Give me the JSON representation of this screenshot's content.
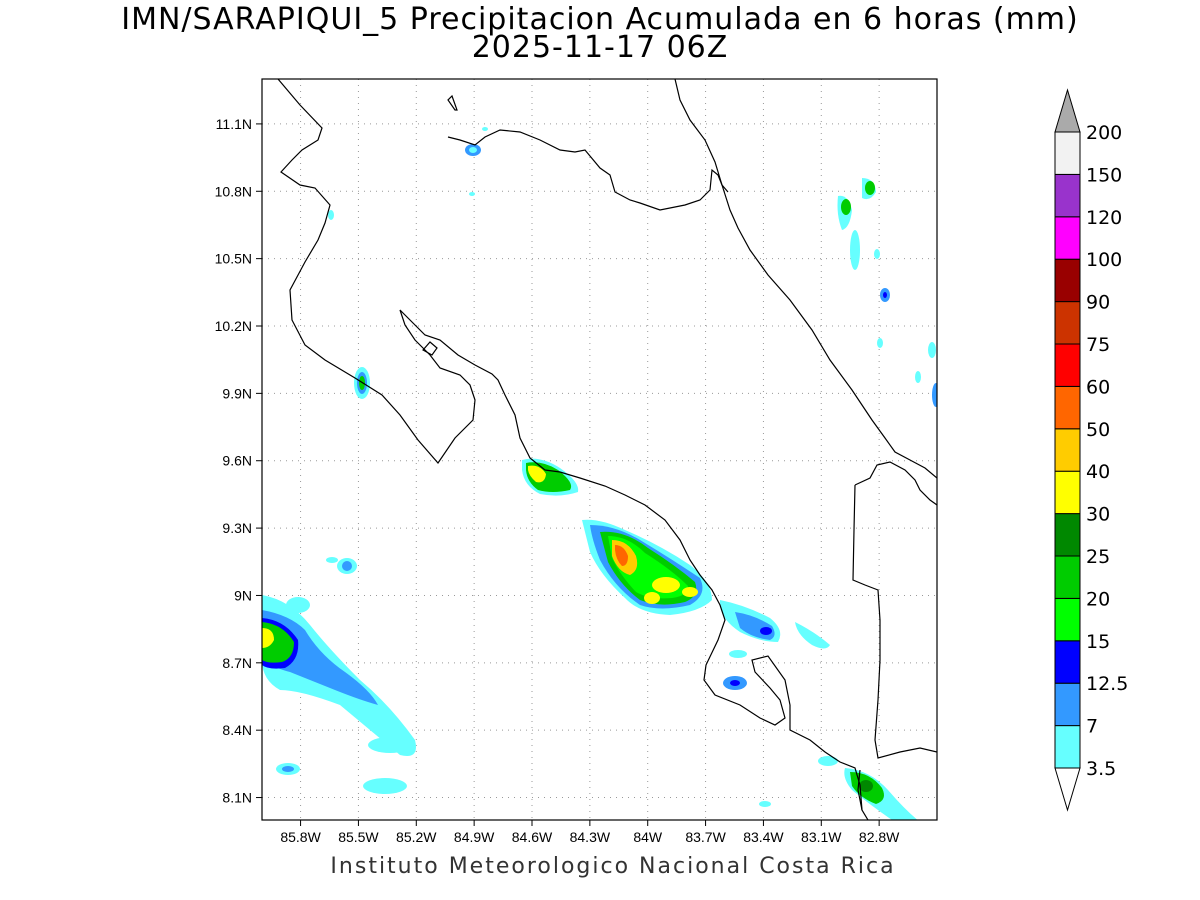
{
  "title": {
    "line1": "IMN/SARAPIQUI_5 Precipitacion Acumulada en 6 horas (mm)",
    "line2": "2025-11-17 06Z"
  },
  "credit": "Instituto Meteorologico Nacional Costa Rica",
  "axes": {
    "lat_labels": [
      "11.1N",
      "10.8N",
      "10.5N",
      "10.2N",
      "9.9N",
      "9.6N",
      "9.3N",
      "9N",
      "8.7N",
      "8.4N",
      "8.1N"
    ],
    "lon_labels": [
      "85.8W",
      "85.5W",
      "85.2W",
      "84.9W",
      "84.6W",
      "84.3W",
      "84W",
      "83.7W",
      "83.4W",
      "83.1W",
      "82.8W"
    ],
    "lat_values": [
      11.1,
      10.8,
      10.5,
      10.2,
      9.9,
      9.6,
      9.3,
      9.0,
      8.7,
      8.4,
      8.1
    ],
    "lon_values": [
      -85.8,
      -85.5,
      -85.2,
      -84.9,
      -84.6,
      -84.3,
      -84.0,
      -83.7,
      -83.4,
      -83.1,
      -82.8
    ],
    "lat_range": [
      8.0,
      11.3
    ],
    "lon_range": [
      -86.0,
      -82.5
    ],
    "grid": true
  },
  "colorbar": {
    "labels": [
      "3.5",
      "7",
      "12.5",
      "15",
      "20",
      "25",
      "30",
      "40",
      "50",
      "60",
      "75",
      "90",
      "100",
      "120",
      "150",
      "200"
    ],
    "colors": [
      "#66ffff",
      "#3399ff",
      "#0000ff",
      "#00ff00",
      "#00cc00",
      "#008800",
      "#ffff00",
      "#ffcc00",
      "#ff6600",
      "#ff0000",
      "#cc3300",
      "#990000",
      "#ff00ff",
      "#9933cc",
      "#f2f2f2",
      "#aaaaaa"
    ]
  }
}
